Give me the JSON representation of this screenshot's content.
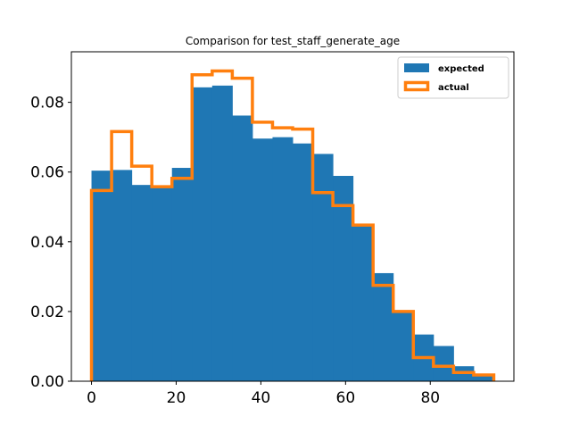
{
  "chart_data": {
    "type": "bar",
    "title": "Comparison for test_staff_generate_age",
    "xlabel": "",
    "ylabel": "",
    "xlim": [
      -4.75,
      99.75
    ],
    "ylim": [
      0.0,
      0.0945
    ],
    "x_ticks": [
      {
        "value": 0,
        "label": "0"
      },
      {
        "value": 20,
        "label": "20"
      },
      {
        "value": 40,
        "label": "40"
      },
      {
        "value": 60,
        "label": "60"
      },
      {
        "value": 80,
        "label": "80"
      }
    ],
    "y_ticks": [
      {
        "value": 0.0,
        "label": "0.00"
      },
      {
        "value": 0.02,
        "label": "0.02"
      },
      {
        "value": 0.04,
        "label": "0.04"
      },
      {
        "value": 0.06,
        "label": "0.06"
      },
      {
        "value": 0.08,
        "label": "0.08"
      }
    ],
    "bin_edges": [
      0,
      4.75,
      9.5,
      14.25,
      19,
      23.75,
      28.5,
      33.25,
      38,
      42.75,
      47.5,
      52.25,
      57,
      61.75,
      66.5,
      71.25,
      76,
      80.75,
      85.5,
      90.25,
      95
    ],
    "series": [
      {
        "name": "expected",
        "style": "filled",
        "color": "#1f77b4",
        "values": [
          0.0604,
          0.0606,
          0.0563,
          0.0562,
          0.0612,
          0.0843,
          0.0848,
          0.0762,
          0.0696,
          0.07,
          0.0682,
          0.0652,
          0.0589,
          0.0451,
          0.031,
          0.0203,
          0.0134,
          0.0101,
          0.0043,
          0.0015
        ]
      },
      {
        "name": "actual",
        "style": "step",
        "color": "#ff7f0e",
        "values": [
          0.0547,
          0.0716,
          0.0617,
          0.0558,
          0.0582,
          0.0879,
          0.089,
          0.0869,
          0.0743,
          0.0727,
          0.0723,
          0.0541,
          0.0504,
          0.0448,
          0.0275,
          0.02,
          0.0068,
          0.0043,
          0.0025,
          0.0018
        ]
      }
    ],
    "legend": {
      "position": "top-right"
    },
    "grid": false
  }
}
